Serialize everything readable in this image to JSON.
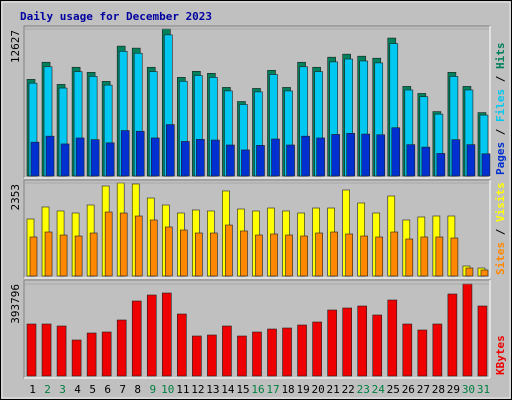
{
  "chart_data": [
    {
      "type": "bar",
      "title": "Daily usage for December 2023",
      "title_color": "#0000a0",
      "ylim": [
        0,
        12627
      ],
      "yticks": [
        12627
      ],
      "legend_separator": " / ",
      "series": [
        {
          "name": "Hits",
          "color": "#00805c",
          "values": [
            8303,
            9773,
            7870,
            9341,
            8908,
            8130,
            11157,
            10984,
            9341,
            12627,
            8476,
            8995,
            8822,
            7611,
            6400,
            7524,
            9081,
            7611,
            9773,
            9341,
            10206,
            10465,
            10292,
            10119,
            11849,
            7697,
            7092,
            5535,
            8908,
            7697,
            5449
          ]
        },
        {
          "name": "Files",
          "color": "#00c8f0",
          "values": [
            7971,
            9382,
            7555,
            8967,
            8552,
            7805,
            10711,
            10545,
            8967,
            12122,
            8137,
            8635,
            8469,
            7307,
            6144,
            7223,
            8718,
            7307,
            9382,
            8967,
            9798,
            10046,
            9880,
            9714,
            11375,
            7389,
            6808,
            5314,
            8552,
            7389,
            5231
          ]
        },
        {
          "name": "Pages",
          "color": "#0030d0",
          "values": [
            2906,
            3421,
            2755,
            3269,
            3118,
            2846,
            3905,
            3844,
            3269,
            4419,
            2967,
            3148,
            3088,
            2664,
            2240,
            2633,
            3178,
            2664,
            3421,
            3269,
            3572,
            3663,
            3602,
            3542,
            4147,
            2694,
            2482,
            1937,
            3118,
            2694,
            1907
          ]
        }
      ]
    },
    {
      "type": "bar",
      "ylim": [
        0,
        2353
      ],
      "yticks": [
        2353
      ],
      "legend_separator": " / ",
      "series": [
        {
          "name": "Visits",
          "color": "#ffff00",
          "values": [
            1442,
            1746,
            1645,
            1594,
            1796,
            2277,
            2353,
            2328,
            1973,
            1796,
            1594,
            1670,
            1645,
            2151,
            1695,
            1645,
            1720,
            1645,
            1594,
            1720,
            1720,
            2176,
            1847,
            1594,
            2024,
            1417,
            1493,
            1518,
            1518,
            253,
            202
          ]
        },
        {
          "name": "Sites",
          "color": "#ff8800",
          "values": [
            987,
            1113,
            1037,
            1012,
            1088,
            1619,
            1594,
            1518,
            1417,
            1240,
            1164,
            1088,
            1088,
            1290,
            1139,
            1037,
            1063,
            1037,
            1012,
            1088,
            1113,
            1063,
            1012,
            987,
            1113,
            936,
            987,
            987,
            961,
            202,
            152
          ]
        }
      ]
    },
    {
      "type": "bar",
      "ylim": [
        0,
        393796
      ],
      "yticks": [
        393796
      ],
      "series": [
        {
          "name": "KBytes",
          "color": "#ee0000",
          "values": [
            222580,
            222580,
            214020,
            154094,
            184057,
            188337,
            239702,
            321030,
            346712,
            355273,
            265386,
            171216,
            175496,
            214020,
            171216,
            188337,
            201178,
            205458,
            218299,
            231141,
            282506,
            291066,
            299627,
            261105,
            325310,
            222580,
            196898,
            222580,
            350992,
            393796,
            299627
          ]
        }
      ],
      "categories": [
        "1",
        "2",
        "3",
        "4",
        "5",
        "6",
        "7",
        "8",
        "9",
        "10",
        "11",
        "12",
        "13",
        "14",
        "15",
        "16",
        "17",
        "18",
        "19",
        "20",
        "21",
        "22",
        "23",
        "24",
        "25",
        "26",
        "27",
        "28",
        "29",
        "30",
        "31"
      ],
      "label_colors": [
        "#000",
        "#008040",
        "#008040",
        "#000",
        "#000",
        "#000",
        "#000",
        "#000",
        "#008040",
        "#008040",
        "#000",
        "#000",
        "#000",
        "#000",
        "#000",
        "#008040",
        "#008040",
        "#000",
        "#000",
        "#000",
        "#000",
        "#000",
        "#008040",
        "#008040",
        "#000",
        "#000",
        "#000",
        "#000",
        "#000",
        "#008040",
        "#008040"
      ]
    }
  ]
}
